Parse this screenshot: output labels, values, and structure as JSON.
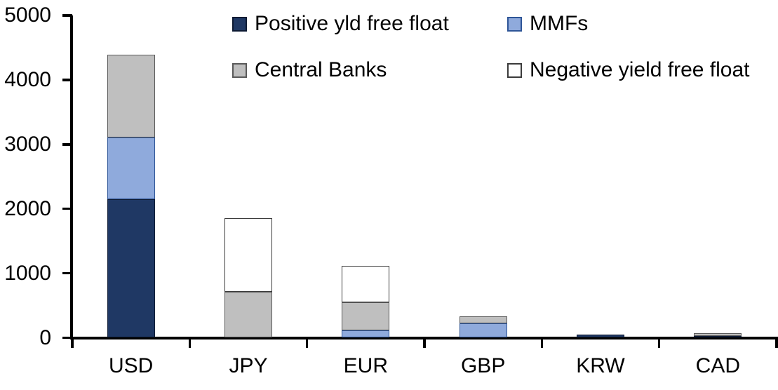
{
  "chart_data": {
    "type": "bar",
    "subtype": "stacked",
    "title": "",
    "categories": [
      "USD",
      "JPY",
      "EUR",
      "GBP",
      "KRW",
      "CAD"
    ],
    "series": [
      {
        "name": "Positive yld free float",
        "color": "#1F3864",
        "border_color": "#0D1A33",
        "values": [
          2150,
          0,
          0,
          0,
          50,
          30
        ]
      },
      {
        "name": "MMFs",
        "color": "#8FAADC",
        "border_color": "#2E5597",
        "values": [
          960,
          0,
          110,
          225,
          0,
          0
        ]
      },
      {
        "name": "Central Banks",
        "color": "#BFBFBF",
        "border_color": "#595959",
        "values": [
          1280,
          710,
          435,
          105,
          0,
          40
        ]
      },
      {
        "name": "Negative yield free float",
        "color": "#FFFFFF",
        "border_color": "#3B3B3B",
        "values": [
          0,
          1140,
          570,
          0,
          0,
          0
        ]
      }
    ],
    "xlabel": "",
    "ylabel": "",
    "y_axis": {
      "min": 0,
      "max": 5000,
      "tick_step": 1000,
      "tick_labels": [
        "0",
        "1000",
        "2000",
        "3000",
        "4000",
        "5000"
      ]
    },
    "legend_position": "top",
    "grid": false,
    "axis_color": "#000000",
    "background_color": "#FFFFFF",
    "totals_by_category": {
      "USD": 4390,
      "JPY": 1850,
      "EUR": 1115,
      "GBP": 330,
      "KRW": 50,
      "CAD": 70
    }
  }
}
